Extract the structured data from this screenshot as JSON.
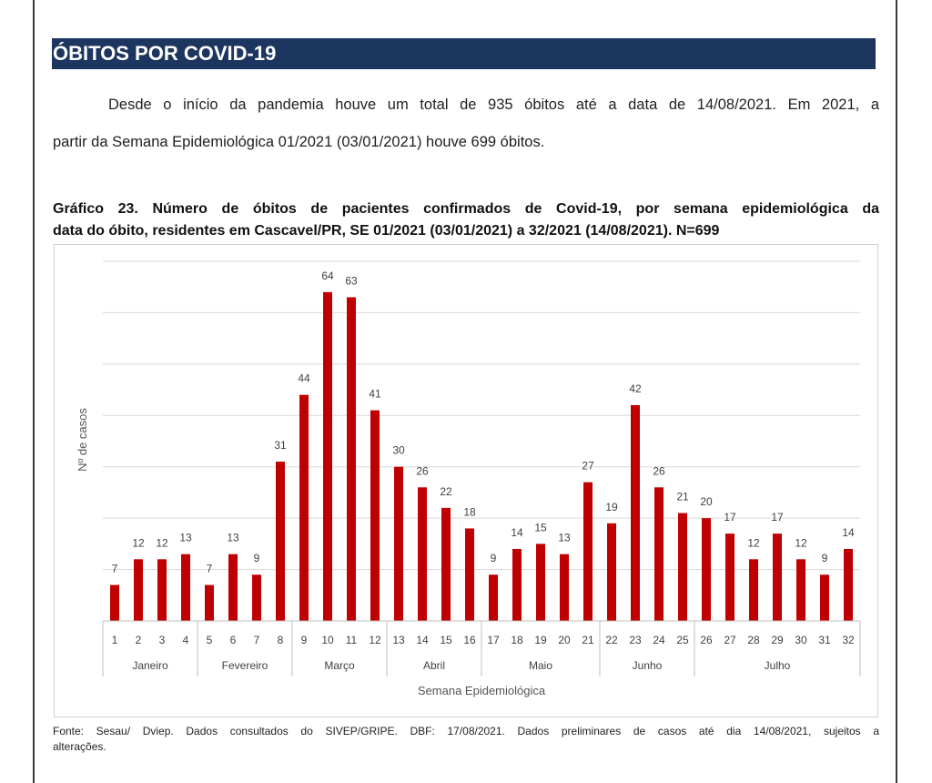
{
  "header": {
    "title": "ÓBITOS POR COVID-19"
  },
  "paragraph": {
    "line1": "Desde o início da pandemia houve um total de 935 óbitos até a data de 14/08/2021. Em 2021, a",
    "line2": "partir da Semana Epidemiológica 01/2021 (03/01/2021) houve 699 óbitos."
  },
  "caption": {
    "line1": "Gráfico 23. Número de óbitos de pacientes confirmados de Covid-19, por semana epidemiológica da",
    "line2": "data do óbito, residentes em Cascavel/PR,  SE 01/2021 (03/01/2021) a 32/2021 (14/08/2021). N=699"
  },
  "chart_data": {
    "type": "bar",
    "ylabel": "Nº de casos",
    "xlabel": "Semana Epidemiológica",
    "ylim": [
      0,
      70
    ],
    "grid": true,
    "bar_color": "#c00000",
    "categories": [
      "1",
      "2",
      "3",
      "4",
      "5",
      "6",
      "7",
      "8",
      "9",
      "10",
      "11",
      "12",
      "13",
      "14",
      "15",
      "16",
      "17",
      "18",
      "19",
      "20",
      "21",
      "22",
      "23",
      "24",
      "25",
      "26",
      "27",
      "28",
      "29",
      "30",
      "31",
      "32"
    ],
    "values": [
      7,
      12,
      12,
      13,
      7,
      13,
      9,
      31,
      44,
      64,
      63,
      41,
      30,
      26,
      22,
      18,
      9,
      14,
      15,
      13,
      27,
      19,
      42,
      26,
      21,
      20,
      17,
      12,
      17,
      12,
      9,
      14
    ],
    "groups": [
      {
        "label": "Janeiro",
        "start": 0,
        "end": 3
      },
      {
        "label": "Fevereiro",
        "start": 4,
        "end": 7
      },
      {
        "label": "Março",
        "start": 8,
        "end": 11
      },
      {
        "label": "Abril",
        "start": 12,
        "end": 15
      },
      {
        "label": "Maio",
        "start": 16,
        "end": 20
      },
      {
        "label": "Junho",
        "start": 21,
        "end": 24
      },
      {
        "label": "Julho",
        "start": 25,
        "end": 31
      }
    ]
  },
  "footnote": {
    "line1": "Fonte: Sesau/ Dviep. Dados consultados do SIVEP/GRIPE. DBF: 17/08/2021. Dados preliminares de casos até dia 14/08/2021, sujeitos a",
    "line2": "alterações."
  }
}
